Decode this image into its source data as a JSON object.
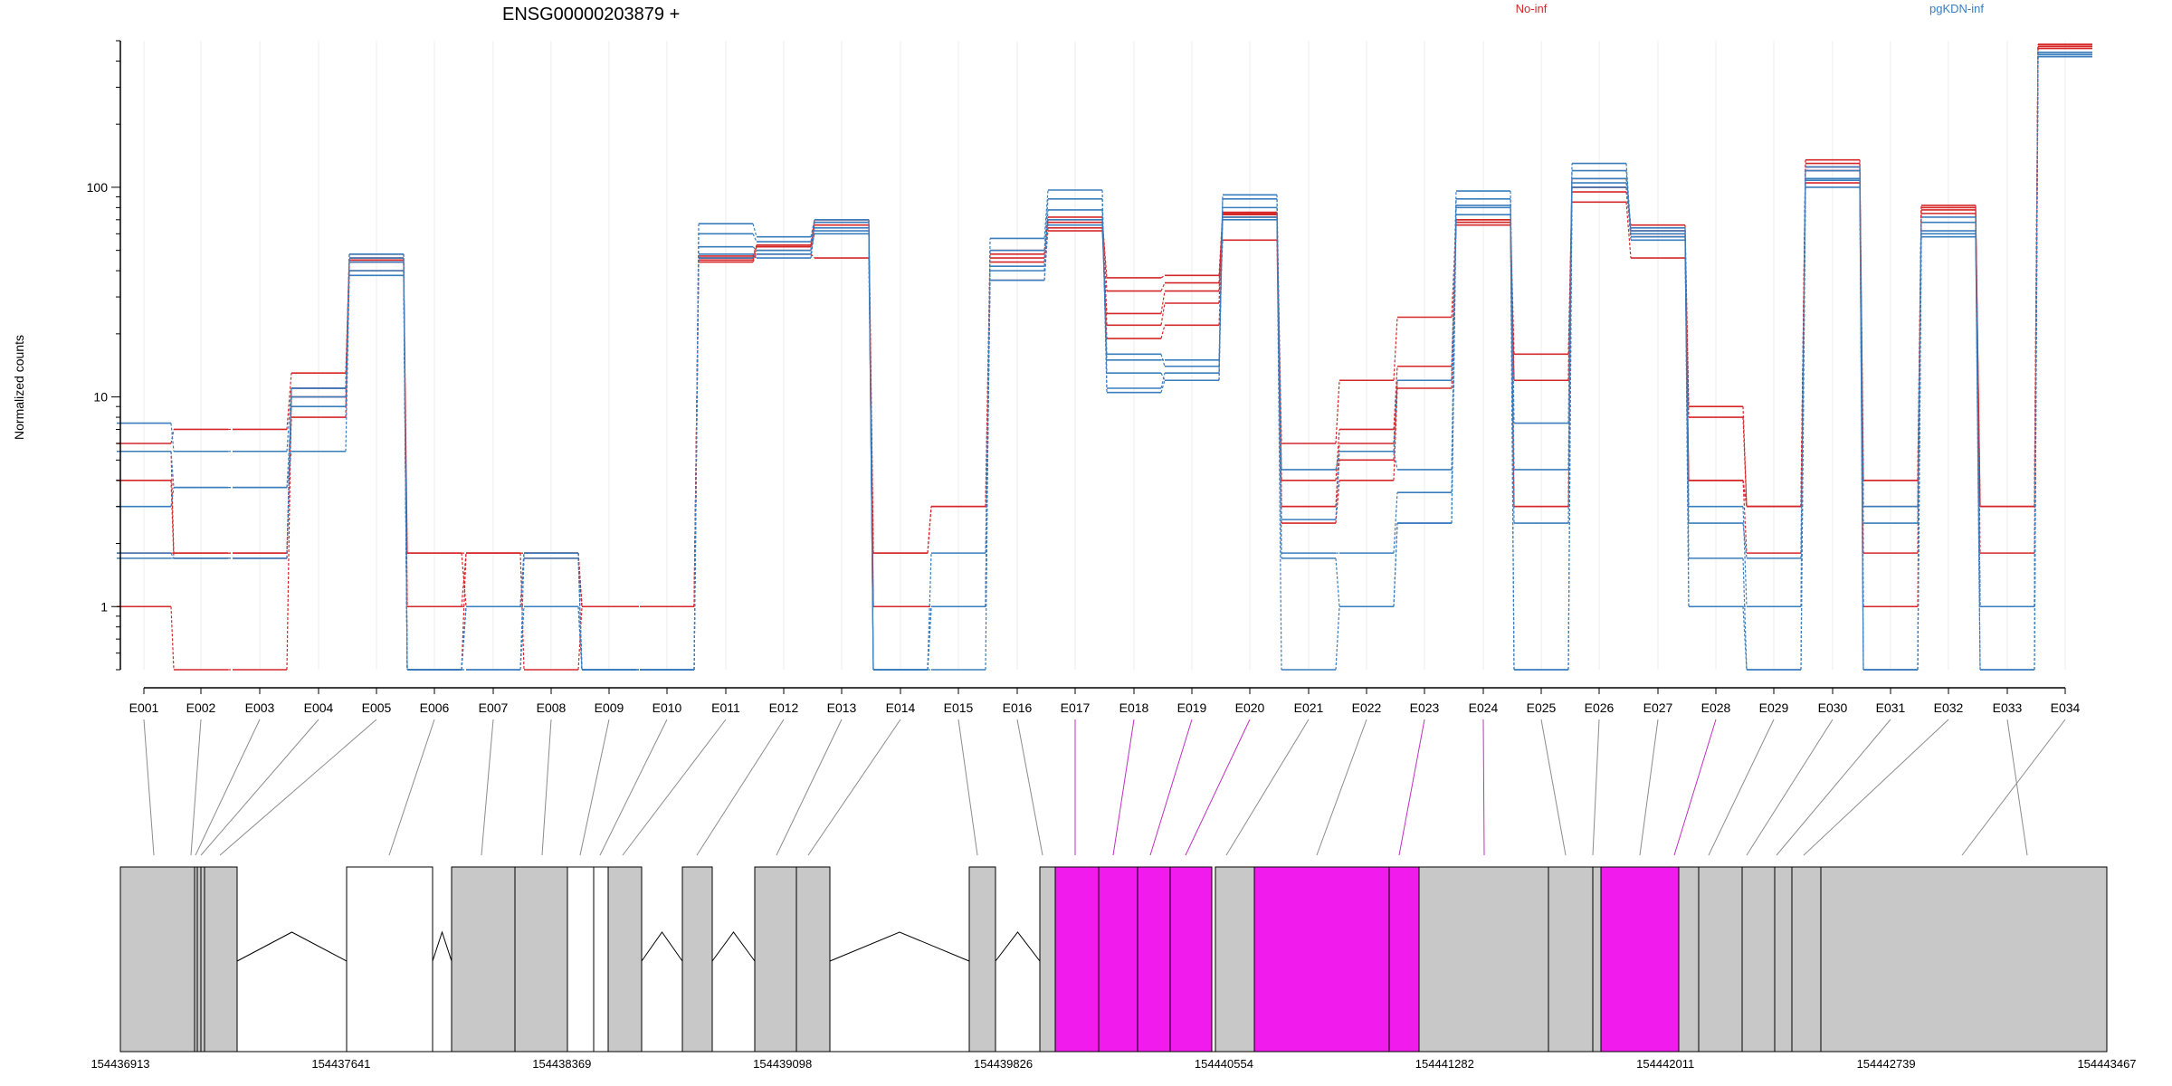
{
  "chart_data": {
    "type": "line",
    "title": "ENSG00000203879 +",
    "ylabel": "Normalized counts",
    "yscale": "log",
    "ylim": [
      0.5,
      500
    ],
    "yticks": [
      1,
      10,
      100
    ],
    "ytick_labels": [
      "1",
      "10",
      "100"
    ],
    "categories": [
      "E001",
      "E002",
      "E003",
      "E004",
      "E005",
      "E006",
      "E007",
      "E008",
      "E009",
      "E010",
      "E011",
      "E012",
      "E013",
      "E014",
      "E015",
      "E016",
      "E017",
      "E018",
      "E019",
      "E020",
      "E021",
      "E022",
      "E023",
      "E024",
      "E025",
      "E026",
      "E027",
      "E028",
      "E029",
      "E030",
      "E031",
      "E032",
      "E033",
      "E034"
    ],
    "legend": [
      {
        "label": "No-inf",
        "color": "#d62728",
        "position": "top"
      },
      {
        "label": "pgKDN-inf",
        "color": "#3a7dbd",
        "position": "top-right"
      }
    ],
    "series": [
      {
        "group": "No-inf",
        "color": "#d62728",
        "values": [
          6,
          7,
          7,
          13,
          45,
          1.8,
          1.8,
          1.8,
          1,
          1,
          47,
          53,
          70,
          1.8,
          3,
          50,
          70,
          37,
          38,
          76,
          6,
          12,
          24,
          70,
          16,
          100,
          66,
          9,
          3,
          135,
          4,
          82,
          3,
          480
        ]
      },
      {
        "group": "No-inf",
        "color": "#d62728",
        "values": [
          5.5,
          1.8,
          1.8,
          11,
          48,
          1,
          1.8,
          1.8,
          1,
          1,
          45,
          50,
          68,
          1,
          1,
          48,
          72,
          32,
          35,
          74,
          4,
          7,
          14,
          68,
          12,
          95,
          62,
          8,
          3,
          130,
          4,
          80,
          3,
          470
        ]
      },
      {
        "group": "No-inf",
        "color": "#d62728",
        "values": [
          4,
          1.7,
          1.7,
          10,
          40,
          1.8,
          1,
          1.8,
          1,
          1,
          46,
          52,
          66,
          1.8,
          3,
          46,
          62,
          25,
          32,
          72,
          3,
          5,
          12,
          70,
          12,
          110,
          58,
          4,
          3,
          120,
          1.8,
          78,
          1.8,
          460
        ]
      },
      {
        "group": "No-inf",
        "color": "#d62728",
        "values": [
          1.8,
          1.8,
          1.8,
          8,
          44,
          1,
          1,
          1.7,
          1,
          1,
          44,
          48,
          46,
          1,
          1,
          36,
          64,
          19,
          22,
          56,
          2.5,
          4,
          11,
          66,
          3,
          85,
          46,
          4,
          1.8,
          105,
          1,
          75,
          1,
          460
        ]
      },
      {
        "group": "No-inf",
        "color": "#d62728",
        "values": [
          1,
          0.5,
          0.5,
          11,
          46,
          0.5,
          1.8,
          0.5,
          1,
          1,
          46,
          52,
          70,
          1,
          1,
          44,
          68,
          22,
          28,
          75,
          3,
          6,
          12,
          68,
          3,
          100,
          60,
          4,
          3,
          125,
          3,
          80,
          3,
          480
        ]
      },
      {
        "group": "pgKDN-inf",
        "color": "#3a7dbd",
        "values": [
          7.5,
          5.5,
          5.5,
          11,
          48,
          0.5,
          1,
          1.8,
          0.5,
          0.5,
          67,
          58,
          70,
          0.5,
          0.5,
          57,
          97,
          10.5,
          12,
          92,
          4.5,
          5.5,
          12,
          96,
          7.5,
          130,
          62,
          3,
          1,
          125,
          3,
          72,
          1,
          440
        ]
      },
      {
        "group": "pgKDN-inf",
        "color": "#3a7dbd",
        "values": [
          5.5,
          3.7,
          3.7,
          9,
          46,
          0.5,
          1,
          1.8,
          0.5,
          0.5,
          60,
          55,
          68,
          0.5,
          1,
          50,
          88,
          11,
          13,
          88,
          2.6,
          5.5,
          4.5,
          88,
          4.5,
          120,
          60,
          2.5,
          1.7,
          120,
          2.5,
          68,
          1,
          430
        ]
      },
      {
        "group": "pgKDN-inf",
        "color": "#3a7dbd",
        "values": [
          3,
          3.7,
          3.7,
          5.5,
          38,
          0.5,
          0.5,
          1.7,
          0.5,
          0.5,
          52,
          50,
          60,
          0.5,
          1.8,
          40,
          78,
          13,
          12,
          80,
          1.8,
          1.8,
          3.5,
          80,
          2.5,
          110,
          58,
          1,
          1,
          110,
          0.5,
          62,
          1,
          420
        ]
      },
      {
        "group": "pgKDN-inf",
        "color": "#3a7dbd",
        "values": [
          1.7,
          1.7,
          1.7,
          10,
          40,
          0.5,
          0.5,
          1,
          0.5,
          0.5,
          48,
          46,
          62,
          0.5,
          1,
          42,
          70,
          15,
          15,
          72,
          1.7,
          1,
          2.5,
          74,
          0.5,
          105,
          56,
          1.7,
          0.5,
          108,
          0.5,
          58,
          0.5,
          420
        ]
      },
      {
        "group": "pgKDN-inf",
        "color": "#3a7dbd",
        "values": [
          1.8,
          1.7,
          1.7,
          11,
          44,
          0.5,
          1,
          1,
          0.5,
          0.5,
          46,
          48,
          64,
          0.5,
          1,
          36,
          66,
          16,
          14,
          70,
          0.5,
          1,
          2.5,
          82,
          0.5,
          100,
          64,
          1,
          0.5,
          100,
          0.5,
          60,
          0.5,
          440
        ]
      }
    ],
    "gene_model": {
      "coordinate_labels": [
        "154436913",
        "154437641",
        "154438369",
        "154439098",
        "154439826",
        "154440554",
        "154441282",
        "154442011",
        "154442739",
        "154443467"
      ],
      "coordinate_range": [
        154436913,
        154443467
      ],
      "exon_colors": {
        "default": "#c8c8c8",
        "highlighted": "#f21bee",
        "unexpressed": "#ffffff"
      },
      "highlighted_exons": [
        "E017",
        "E018",
        "E019",
        "E020",
        "E023",
        "E024",
        "E028"
      ]
    }
  }
}
